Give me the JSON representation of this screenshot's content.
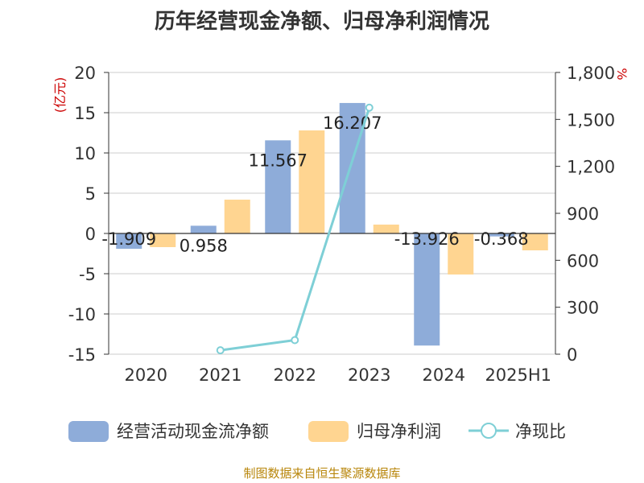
{
  "title": "历年经营现金净额、归母净利润情况",
  "source": "制图数据来自恒生聚源数据库",
  "colors": {
    "cash": "#8eacd9",
    "profit": "#ffd591",
    "ratio": "#7ecfd6",
    "unit": "#cc0000",
    "axis": "#333333",
    "grid": "#cccccc"
  },
  "chart_data": {
    "type": "bar",
    "title": "历年经营现金净额、归母净利润情况",
    "categories": [
      "2020",
      "2021",
      "2022",
      "2023",
      "2024",
      "2025H1"
    ],
    "left_axis_unit": "(亿元)",
    "right_axis_unit": "%",
    "ylim_left": [
      -15,
      20
    ],
    "yticks_left": [
      -15,
      -10,
      -5,
      0,
      5,
      10,
      15,
      20
    ],
    "ylim_right": [
      0,
      1800
    ],
    "yticks_right": [
      "0",
      "300",
      "600",
      "900",
      "1,200",
      "1,500",
      "1,800"
    ],
    "series": [
      {
        "name": "经营活动现金流净额",
        "type": "bar",
        "axis": "left",
        "values": [
          -1.909,
          0.958,
          11.567,
          16.207,
          -13.926,
          -0.368
        ],
        "labels": [
          "-1.909",
          "0.958",
          "11.567",
          "16.207",
          "-13.926",
          "-0.368"
        ]
      },
      {
        "name": "归母净利润",
        "type": "bar",
        "axis": "left",
        "values": [
          -1.7,
          4.2,
          12.8,
          1.1,
          -5.1,
          -2.1
        ]
      },
      {
        "name": "净现比",
        "type": "line",
        "axis": "right",
        "values": [
          null,
          25,
          90,
          1575,
          null,
          null
        ]
      }
    ],
    "legend_position": "bottom",
    "grid": true
  }
}
